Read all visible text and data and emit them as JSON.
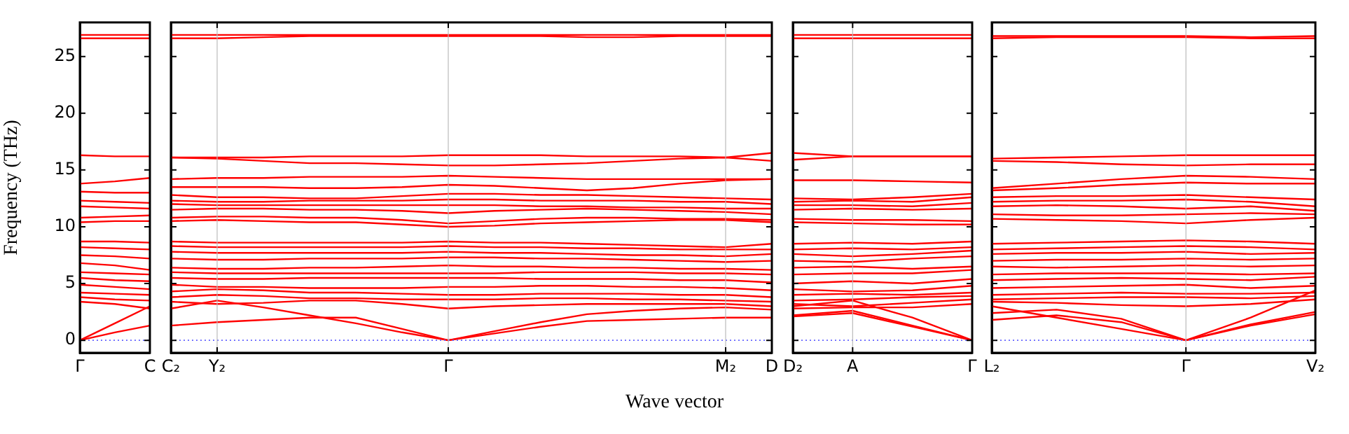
{
  "chart_data": [
    {
      "type": "line",
      "ylabel": "Frequency (THz)",
      "categories": [
        "Γ",
        null,
        "C"
      ],
      "ylim": [
        -1.1,
        28
      ],
      "yticks": [
        0,
        5,
        10,
        15,
        20,
        25
      ],
      "ref_lines": [
        {
          "axis": "y",
          "value": 0,
          "color": "#6666ff",
          "line_style": "dotted"
        }
      ],
      "series": [
        {
          "color": "#ff0000",
          "values": [
            26.9,
            26.9,
            26.9
          ]
        },
        {
          "color": "#ff0000",
          "values": [
            26.6,
            26.6,
            26.6
          ]
        },
        {
          "color": "#ff0000",
          "values": [
            16.3,
            16.2,
            16.2
          ]
        },
        {
          "color": "#ff0000",
          "values": [
            13.8,
            14.0,
            14.3
          ]
        },
        {
          "color": "#ff0000",
          "values": [
            13.1,
            13.0,
            13.0
          ]
        },
        {
          "color": "#ff0000",
          "values": [
            12.3,
            12.2,
            12.1
          ]
        },
        {
          "color": "#ff0000",
          "values": [
            11.8,
            11.7,
            11.6
          ]
        },
        {
          "color": "#ff0000",
          "values": [
            10.8,
            10.9,
            11.0
          ]
        },
        {
          "color": "#ff0000",
          "values": [
            10.4,
            10.5,
            10.5
          ]
        },
        {
          "color": "#ff0000",
          "values": [
            8.7,
            8.7,
            8.6
          ]
        },
        {
          "color": "#ff0000",
          "values": [
            8.2,
            8.1,
            8.0
          ]
        },
        {
          "color": "#ff0000",
          "values": [
            7.5,
            7.4,
            7.2
          ]
        },
        {
          "color": "#ff0000",
          "values": [
            6.8,
            6.6,
            6.2
          ]
        },
        {
          "color": "#ff0000",
          "values": [
            6.0,
            5.9,
            5.8
          ]
        },
        {
          "color": "#ff0000",
          "values": [
            5.5,
            5.3,
            5.2
          ]
        },
        {
          "color": "#ff0000",
          "values": [
            4.9,
            4.7,
            4.5
          ]
        },
        {
          "color": "#ff0000",
          "values": [
            4.2,
            4.1,
            4.0
          ]
        },
        {
          "color": "#ff0000",
          "values": [
            3.8,
            3.6,
            3.5
          ]
        },
        {
          "color": "#ff0000",
          "values": [
            3.4,
            3.2,
            2.8
          ]
        },
        {
          "color": "#ff0000",
          "values": [
            0,
            1.5,
            3.0
          ]
        },
        {
          "color": "#ff0000",
          "values": [
            0,
            0.7,
            1.3
          ]
        }
      ]
    },
    {
      "type": "line",
      "xlabel": "Wave vector",
      "categories": [
        "C₂",
        "Y₂",
        null,
        null,
        null,
        null,
        "Γ",
        null,
        null,
        null,
        null,
        null,
        "M₂",
        "D"
      ],
      "ylim": [
        -1.1,
        28
      ],
      "yticks": [
        0,
        5,
        10,
        15,
        20,
        25
      ],
      "tick_labels": "x",
      "ref_lines": [
        {
          "axis": "y",
          "value": 0,
          "color": "#6666ff",
          "line_style": "dotted"
        },
        {
          "axis": "x",
          "value": "Y₂",
          "color": "#bbbbbb"
        },
        {
          "axis": "x",
          "value": "Γ",
          "color": "#bbbbbb"
        },
        {
          "axis": "x",
          "value": "M₂",
          "color": "#bbbbbb"
        }
      ],
      "series": [
        {
          "color": "#ff0000",
          "values": [
            26.6,
            26.6,
            26.7,
            26.8,
            26.8,
            26.8,
            26.8,
            26.8,
            26.8,
            26.7,
            26.7,
            26.8,
            26.8,
            26.8
          ]
        },
        {
          "color": "#ff0000",
          "values": [
            26.9,
            26.9,
            26.9,
            26.9,
            26.9,
            26.9,
            26.9,
            26.9,
            26.9,
            26.9,
            26.9,
            26.9,
            26.9,
            26.9
          ]
        },
        {
          "color": "#ff0000",
          "values": [
            16.1,
            16.1,
            16.1,
            16.2,
            16.2,
            16.2,
            16.3,
            16.3,
            16.3,
            16.2,
            16.2,
            16.2,
            16.1,
            16.5
          ]
        },
        {
          "color": "#ff0000",
          "values": [
            16.1,
            16.0,
            15.8,
            15.6,
            15.6,
            15.5,
            15.4,
            15.4,
            15.5,
            15.6,
            15.8,
            16.0,
            16.1,
            15.8
          ]
        },
        {
          "color": "#ff0000",
          "values": [
            14.2,
            14.3,
            14.3,
            14.4,
            14.4,
            14.4,
            14.5,
            14.4,
            14.3,
            14.2,
            14.2,
            14.2,
            14.2,
            14.2
          ]
        },
        {
          "color": "#ff0000",
          "values": [
            13.5,
            13.5,
            13.5,
            13.4,
            13.4,
            13.5,
            13.7,
            13.6,
            13.4,
            13.2,
            13.4,
            13.8,
            14.1,
            14.2
          ]
        },
        {
          "color": "#ff0000",
          "values": [
            12.8,
            12.6,
            12.6,
            12.5,
            12.5,
            12.7,
            12.9,
            12.9,
            12.8,
            12.8,
            12.7,
            12.6,
            12.5,
            12.4
          ]
        },
        {
          "color": "#ff0000",
          "values": [
            12.3,
            12.2,
            12.2,
            12.3,
            12.3,
            12.3,
            12.4,
            12.4,
            12.3,
            12.3,
            12.3,
            12.2,
            12.2,
            12.0
          ]
        },
        {
          "color": "#ff0000",
          "values": [
            12.0,
            11.9,
            11.9,
            11.9,
            11.9,
            11.9,
            11.9,
            11.9,
            11.8,
            11.8,
            11.7,
            11.7,
            11.6,
            11.6
          ]
        },
        {
          "color": "#ff0000",
          "values": [
            11.5,
            11.6,
            11.6,
            11.5,
            11.5,
            11.4,
            11.2,
            11.4,
            11.5,
            11.6,
            11.5,
            11.4,
            11.3,
            11.1
          ]
        },
        {
          "color": "#ff0000",
          "values": [
            10.8,
            10.9,
            10.9,
            10.8,
            10.8,
            10.6,
            10.3,
            10.5,
            10.7,
            10.8,
            10.8,
            10.7,
            10.7,
            10.6
          ]
        },
        {
          "color": "#ff0000",
          "values": [
            10.5,
            10.6,
            10.5,
            10.4,
            10.4,
            10.2,
            10.0,
            10.1,
            10.3,
            10.4,
            10.5,
            10.6,
            10.6,
            10.4
          ]
        },
        {
          "color": "#ff0000",
          "values": [
            8.7,
            8.6,
            8.6,
            8.6,
            8.6,
            8.6,
            8.7,
            8.6,
            8.6,
            8.5,
            8.4,
            8.3,
            8.2,
            8.5
          ]
        },
        {
          "color": "#ff0000",
          "values": [
            8.3,
            8.2,
            8.2,
            8.2,
            8.2,
            8.2,
            8.3,
            8.2,
            8.2,
            8.1,
            8.1,
            8.0,
            8.0,
            8.0
          ]
        },
        {
          "color": "#ff0000",
          "values": [
            7.8,
            7.7,
            7.7,
            7.7,
            7.7,
            7.7,
            7.8,
            7.7,
            7.7,
            7.6,
            7.5,
            7.5,
            7.4,
            7.6
          ]
        },
        {
          "color": "#ff0000",
          "values": [
            7.2,
            7.1,
            7.1,
            7.2,
            7.2,
            7.2,
            7.3,
            7.3,
            7.2,
            7.2,
            7.1,
            7.0,
            6.9,
            7.0
          ]
        },
        {
          "color": "#ff0000",
          "values": [
            6.4,
            6.3,
            6.3,
            6.4,
            6.4,
            6.5,
            6.6,
            6.5,
            6.5,
            6.4,
            6.4,
            6.3,
            6.3,
            6.2
          ]
        },
        {
          "color": "#ff0000",
          "values": [
            6.0,
            5.9,
            5.9,
            5.9,
            5.9,
            5.9,
            5.9,
            5.9,
            6.0,
            6.0,
            6.0,
            5.9,
            5.9,
            5.8
          ]
        },
        {
          "color": "#ff0000",
          "values": [
            5.5,
            5.4,
            5.4,
            5.5,
            5.5,
            5.5,
            5.5,
            5.5,
            5.4,
            5.4,
            5.4,
            5.3,
            5.3,
            5.1
          ]
        },
        {
          "color": "#ff0000",
          "values": [
            4.9,
            4.7,
            4.7,
            4.6,
            4.6,
            4.6,
            4.7,
            4.7,
            4.8,
            4.8,
            4.7,
            4.7,
            4.6,
            4.4
          ]
        },
        {
          "color": "#ff0000",
          "values": [
            4.3,
            4.5,
            4.4,
            4.2,
            4.2,
            4.1,
            4.0,
            4.0,
            4.1,
            4.1,
            4.1,
            4.0,
            4.0,
            3.8
          ]
        },
        {
          "color": "#ff0000",
          "values": [
            3.8,
            4.0,
            3.9,
            3.7,
            3.7,
            3.6,
            3.6,
            3.6,
            3.7,
            3.7,
            3.6,
            3.6,
            3.5,
            3.4
          ]
        },
        {
          "color": "#ff0000",
          "values": [
            3.4,
            3.2,
            3.3,
            3.5,
            3.5,
            3.2,
            2.8,
            3.0,
            3.1,
            3.2,
            3.2,
            3.2,
            3.2,
            3.0
          ]
        },
        {
          "color": "#ff0000",
          "values": [
            2.8,
            3.5,
            2.9,
            2.2,
            1.5,
            0.7,
            0,
            0.8,
            1.6,
            2.3,
            2.6,
            2.8,
            2.9,
            2.7
          ]
        },
        {
          "color": "#ff0000",
          "values": [
            1.3,
            1.6,
            1.8,
            2.0,
            2.0,
            1.0,
            0,
            0.6,
            1.2,
            1.7,
            1.8,
            1.9,
            2.0,
            2.0
          ]
        }
      ]
    },
    {
      "type": "line",
      "categories": [
        "D₂",
        "A",
        null,
        "Γ"
      ],
      "ylim": [
        -1.1,
        28
      ],
      "yticks": [
        0,
        5,
        10,
        15,
        20,
        25
      ],
      "tick_labels": "x",
      "ref_lines": [
        {
          "axis": "y",
          "value": 0,
          "color": "#6666ff",
          "line_style": "dotted"
        },
        {
          "axis": "x",
          "value": "A",
          "color": "#bbbbbb"
        }
      ],
      "series": [
        {
          "color": "#ff0000",
          "values": [
            26.9,
            26.9,
            26.9,
            26.9
          ]
        },
        {
          "color": "#ff0000",
          "values": [
            26.6,
            26.6,
            26.6,
            26.6
          ]
        },
        {
          "color": "#ff0000",
          "values": [
            16.5,
            16.2,
            16.2,
            16.2
          ]
        },
        {
          "color": "#ff0000",
          "values": [
            15.9,
            16.2,
            16.2,
            16.2
          ]
        },
        {
          "color": "#ff0000",
          "values": [
            14.1,
            14.1,
            14.0,
            13.9
          ]
        },
        {
          "color": "#ff0000",
          "values": [
            12.5,
            12.4,
            12.6,
            12.9
          ]
        },
        {
          "color": "#ff0000",
          "values": [
            12.2,
            12.3,
            12.2,
            12.6
          ]
        },
        {
          "color": "#ff0000",
          "values": [
            11.9,
            11.9,
            11.8,
            12.1
          ]
        },
        {
          "color": "#ff0000",
          "values": [
            11.5,
            11.6,
            11.5,
            11.6
          ]
        },
        {
          "color": "#ff0000",
          "values": [
            10.7,
            10.6,
            10.6,
            10.5
          ]
        },
        {
          "color": "#ff0000",
          "values": [
            10.4,
            10.3,
            10.2,
            10.2
          ]
        },
        {
          "color": "#ff0000",
          "values": [
            8.5,
            8.6,
            8.5,
            8.7
          ]
        },
        {
          "color": "#ff0000",
          "values": [
            8.0,
            8.1,
            8.0,
            8.2
          ]
        },
        {
          "color": "#ff0000",
          "values": [
            7.6,
            7.4,
            7.6,
            7.9
          ]
        },
        {
          "color": "#ff0000",
          "values": [
            7.0,
            6.9,
            7.2,
            7.4
          ]
        },
        {
          "color": "#ff0000",
          "values": [
            6.4,
            6.5,
            6.3,
            6.5
          ]
        },
        {
          "color": "#ff0000",
          "values": [
            5.8,
            5.9,
            5.9,
            6.2
          ]
        },
        {
          "color": "#ff0000",
          "values": [
            5.0,
            5.2,
            5.0,
            5.4
          ]
        },
        {
          "color": "#ff0000",
          "values": [
            4.5,
            4.3,
            4.4,
            4.8
          ]
        },
        {
          "color": "#ff0000",
          "values": [
            4.0,
            4.1,
            4.0,
            4.2
          ]
        },
        {
          "color": "#ff0000",
          "values": [
            3.5,
            3.6,
            3.8,
            3.9
          ]
        },
        {
          "color": "#ff0000",
          "values": [
            3.2,
            3.0,
            3.3,
            3.6
          ]
        },
        {
          "color": "#ff0000",
          "values": [
            2.8,
            2.9,
            2.9,
            3.2
          ]
        },
        {
          "color": "#ff0000",
          "values": [
            2.2,
            2.6,
            1.3,
            0
          ]
        },
        {
          "color": "#ff0000",
          "values": [
            2.1,
            2.4,
            1.2,
            0
          ]
        },
        {
          "color": "#ff0000",
          "values": [
            3.0,
            3.5,
            2.0,
            0
          ]
        }
      ]
    },
    {
      "type": "line",
      "categories": [
        "L₂",
        null,
        null,
        "Γ",
        null,
        "V₂"
      ],
      "ylim": [
        -1.1,
        28
      ],
      "yticks": [
        0,
        5,
        10,
        15,
        20,
        25
      ],
      "tick_labels": "x",
      "ref_lines": [
        {
          "axis": "y",
          "value": 0,
          "color": "#6666ff",
          "line_style": "dotted"
        },
        {
          "axis": "x",
          "value": "Γ",
          "color": "#bbbbbb"
        }
      ],
      "series": [
        {
          "color": "#ff0000",
          "values": [
            26.8,
            26.8,
            26.8,
            26.8,
            26.7,
            26.8
          ]
        },
        {
          "color": "#ff0000",
          "values": [
            26.6,
            26.7,
            26.7,
            26.7,
            26.6,
            26.6
          ]
        },
        {
          "color": "#ff0000",
          "values": [
            16.0,
            16.1,
            16.2,
            16.3,
            16.3,
            16.3
          ]
        },
        {
          "color": "#ff0000",
          "values": [
            15.8,
            15.7,
            15.5,
            15.4,
            15.5,
            15.5
          ]
        },
        {
          "color": "#ff0000",
          "values": [
            13.4,
            13.8,
            14.2,
            14.5,
            14.4,
            14.2
          ]
        },
        {
          "color": "#ff0000",
          "values": [
            13.2,
            13.4,
            13.7,
            13.9,
            13.8,
            13.8
          ]
        },
        {
          "color": "#ff0000",
          "values": [
            12.6,
            12.7,
            12.7,
            12.8,
            12.6,
            12.4
          ]
        },
        {
          "color": "#ff0000",
          "values": [
            12.2,
            12.3,
            12.3,
            12.4,
            12.2,
            11.8
          ]
        },
        {
          "color": "#ff0000",
          "values": [
            11.8,
            11.9,
            11.8,
            11.6,
            11.8,
            11.4
          ]
        },
        {
          "color": "#ff0000",
          "values": [
            11.1,
            11.0,
            11.0,
            11.1,
            11.2,
            11.1
          ]
        },
        {
          "color": "#ff0000",
          "values": [
            10.7,
            10.6,
            10.5,
            10.3,
            10.6,
            10.8
          ]
        },
        {
          "color": "#ff0000",
          "values": [
            8.5,
            8.6,
            8.7,
            8.8,
            8.7,
            8.5
          ]
        },
        {
          "color": "#ff0000",
          "values": [
            8.0,
            8.1,
            8.2,
            8.3,
            8.2,
            8.0
          ]
        },
        {
          "color": "#ff0000",
          "values": [
            7.6,
            7.7,
            7.7,
            7.8,
            7.6,
            7.7
          ]
        },
        {
          "color": "#ff0000",
          "values": [
            7.0,
            7.1,
            7.1,
            7.2,
            7.1,
            7.2
          ]
        },
        {
          "color": "#ff0000",
          "values": [
            6.5,
            6.4,
            6.5,
            6.6,
            6.5,
            6.6
          ]
        },
        {
          "color": "#ff0000",
          "values": [
            5.8,
            5.9,
            5.9,
            5.9,
            5.8,
            5.9
          ]
        },
        {
          "color": "#ff0000",
          "values": [
            5.3,
            5.4,
            5.5,
            5.4,
            5.3,
            5.6
          ]
        },
        {
          "color": "#ff0000",
          "values": [
            4.6,
            4.7,
            4.8,
            4.9,
            4.6,
            4.8
          ]
        },
        {
          "color": "#ff0000",
          "values": [
            4.0,
            4.1,
            4.2,
            4.1,
            4.1,
            4.2
          ]
        },
        {
          "color": "#ff0000",
          "values": [
            3.6,
            3.7,
            3.8,
            3.8,
            3.7,
            3.9
          ]
        },
        {
          "color": "#ff0000",
          "values": [
            3.4,
            3.3,
            3.1,
            3.0,
            3.2,
            3.6
          ]
        },
        {
          "color": "#ff0000",
          "values": [
            1.8,
            2.2,
            1.6,
            0,
            1.4,
            2.5
          ]
        },
        {
          "color": "#ff0000",
          "values": [
            2.4,
            2.7,
            1.9,
            0,
            1.3,
            2.3
          ]
        },
        {
          "color": "#ff0000",
          "values": [
            3.0,
            2.0,
            1.0,
            0,
            2.0,
            4.4
          ]
        }
      ]
    }
  ]
}
